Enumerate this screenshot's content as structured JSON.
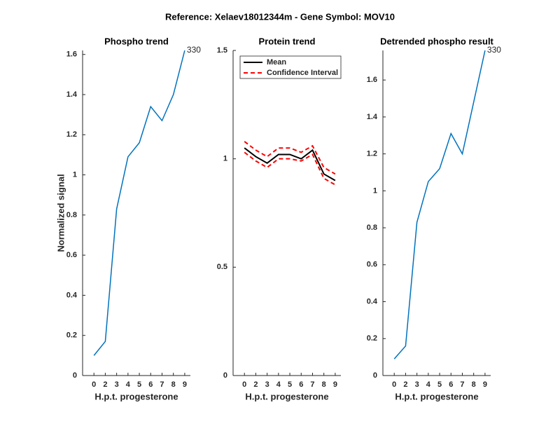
{
  "title": "Reference:  Xelaev18012344m - Gene Symbol:  MOV10",
  "chart_data": [
    {
      "type": "line",
      "title": "Phospho trend",
      "xlabel": "H.p.t. progesterone",
      "ylabel": "Normalized signal",
      "categories": [
        "0",
        "2",
        "3",
        "4",
        "5",
        "6",
        "7",
        "8",
        "9"
      ],
      "series": [
        {
          "color": "#0072bd",
          "values": [
            0.1,
            0.17,
            0.83,
            1.09,
            1.16,
            1.34,
            1.27,
            1.4,
            1.62
          ]
        }
      ],
      "annotations": [
        {
          "text": "330"
        }
      ],
      "ylim": [
        0,
        1.62
      ],
      "yticks": [
        0,
        0.2,
        0.4,
        0.6,
        0.8,
        1,
        1.2,
        1.4,
        1.6
      ]
    },
    {
      "type": "line",
      "title": "Protein trend",
      "xlabel": "H.p.t. progesterone",
      "categories": [
        "0",
        "2",
        "3",
        "4",
        "5",
        "6",
        "7",
        "8",
        "9"
      ],
      "series": [
        {
          "name": "Mean",
          "color": "#000000",
          "values": [
            1.05,
            1.01,
            0.98,
            1.02,
            1.02,
            1.0,
            1.04,
            0.93,
            0.9
          ]
        },
        {
          "name": "Confidence Interval",
          "color": "#ff0000",
          "dashed": true,
          "upper": [
            1.08,
            1.04,
            1.01,
            1.05,
            1.05,
            1.03,
            1.06,
            0.96,
            0.93
          ],
          "lower": [
            1.03,
            0.99,
            0.96,
            1.0,
            1.0,
            0.99,
            1.02,
            0.91,
            0.88
          ]
        }
      ],
      "legend": "northwest",
      "ylim": [
        0,
        1.5
      ],
      "yticks": [
        0,
        0.5,
        1,
        1.5
      ]
    },
    {
      "type": "line",
      "title": "Detrended phospho result",
      "xlabel": "H.p.t. progesterone",
      "categories": [
        "0",
        "2",
        "3",
        "4",
        "5",
        "6",
        "7",
        "8",
        "9"
      ],
      "series": [
        {
          "color": "#0072bd",
          "values": [
            0.09,
            0.16,
            0.83,
            1.05,
            1.12,
            1.31,
            1.2,
            1.48,
            1.76
          ]
        }
      ],
      "annotations": [
        {
          "text": "330"
        }
      ],
      "ylim": [
        0,
        1.76
      ],
      "yticks": [
        0,
        0.2,
        0.4,
        0.6,
        0.8,
        1,
        1.2,
        1.4,
        1.6
      ]
    }
  ]
}
